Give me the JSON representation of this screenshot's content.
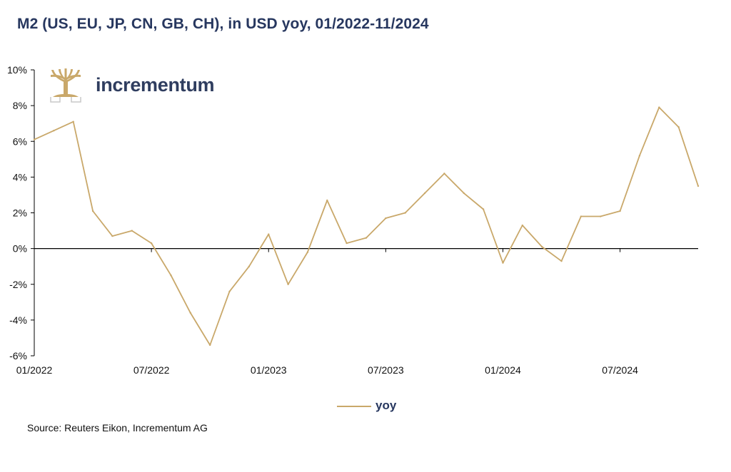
{
  "title": "M2 (US, EU, JP, CN, GB, CH), in USD yoy, 01/2022-11/2024",
  "logo": {
    "text": "incrementum",
    "icon": "tree-logo-icon",
    "color": "#c9a86a"
  },
  "source": "Source: Reuters Eikon, Incrementum AG",
  "legend": {
    "label": "yoy",
    "color": "#c9a86a"
  },
  "chart_data": {
    "type": "line",
    "title": "M2 (US, EU, JP, CN, GB, CH), in USD yoy, 01/2022-11/2024",
    "xlabel": "",
    "ylabel": "",
    "ylim": [
      -6,
      10
    ],
    "y_ticks": [
      -6,
      -4,
      -2,
      0,
      2,
      4,
      6,
      8,
      10
    ],
    "y_tick_labels": [
      "-6%",
      "-4%",
      "-2%",
      "0%",
      "2%",
      "4%",
      "6%",
      "8%",
      "10%"
    ],
    "x_tick_labels": [
      "01/2022",
      "07/2022",
      "01/2023",
      "07/2023",
      "01/2024",
      "07/2024"
    ],
    "x_tick_months": [
      0,
      6,
      12,
      18,
      24,
      30
    ],
    "grid": false,
    "legend_position": "bottom-center",
    "series": [
      {
        "name": "yoy",
        "color": "#c9a86a",
        "x_month_index": [
          0,
          1,
          2,
          3,
          4,
          5,
          6,
          7,
          8,
          9,
          10,
          11,
          12,
          13,
          14,
          15,
          16,
          17,
          18,
          19,
          20,
          21,
          22,
          23,
          24,
          25,
          26,
          27,
          28,
          29,
          30,
          31,
          32,
          33,
          34
        ],
        "values": [
          6.1,
          6.6,
          7.1,
          2.1,
          0.7,
          1.0,
          0.3,
          -1.5,
          -3.6,
          -5.4,
          -2.4,
          -1.0,
          0.8,
          -2.0,
          -0.2,
          2.7,
          0.3,
          0.6,
          1.7,
          2.0,
          3.1,
          4.2,
          3.1,
          2.2,
          -0.8,
          1.3,
          0.1,
          -0.7,
          1.8,
          1.8,
          2.1,
          5.2,
          7.9,
          6.8,
          3.5
        ]
      }
    ]
  }
}
